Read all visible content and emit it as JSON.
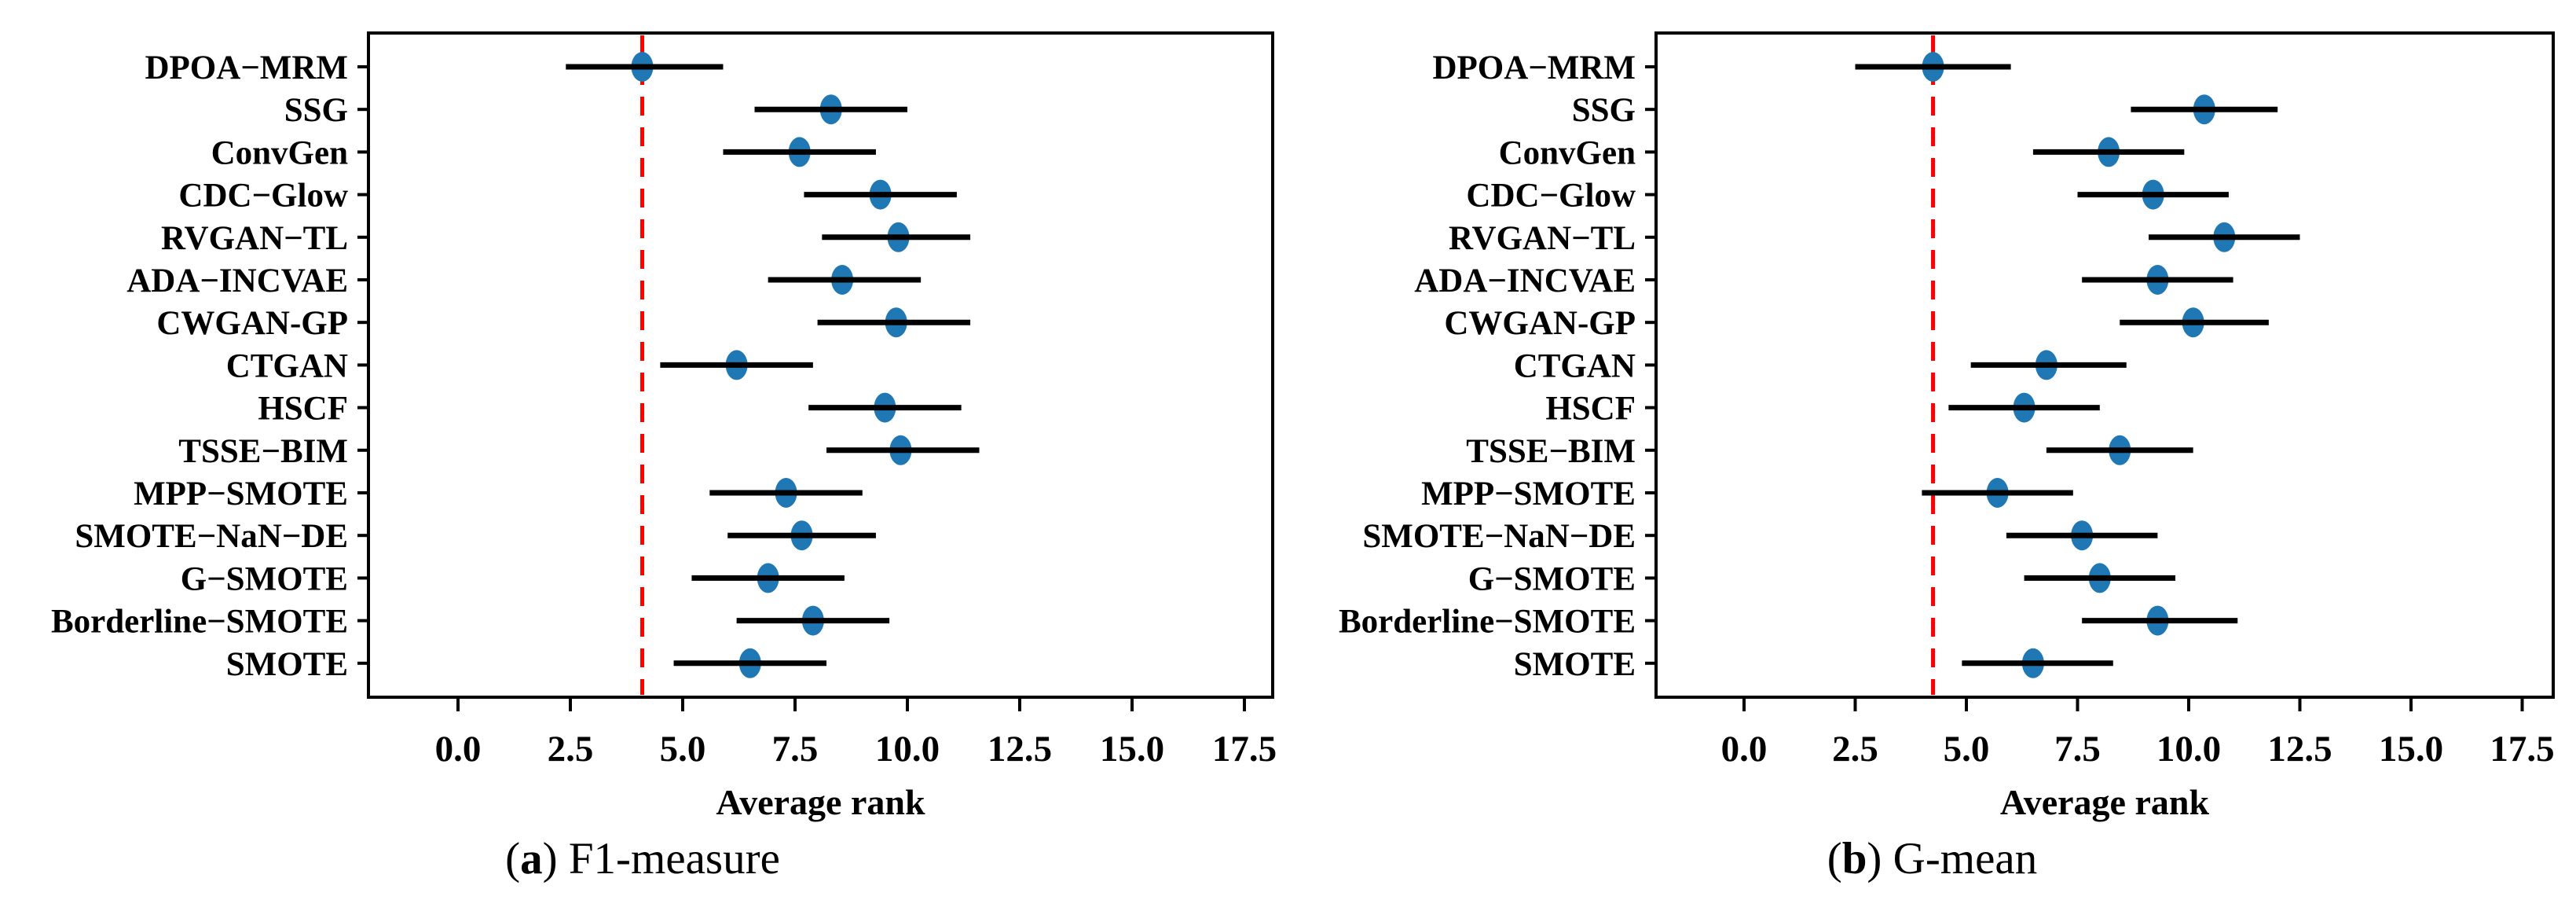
{
  "figure": {
    "captions": [
      {
        "open": "(",
        "letter": "a",
        "close": ") ",
        "text": "F1-measure"
      },
      {
        "open": "(",
        "letter": "b",
        "close": ") ",
        "text": "G-mean"
      }
    ]
  },
  "chart_data": [
    {
      "type": "scatter",
      "subtype": "horizontal-dot-with-errorbars",
      "title": "(a) F1-measure",
      "xlabel": "Average rank",
      "xlim": [
        -2.0,
        18.2
      ],
      "xticks": [
        0.0,
        2.5,
        5.0,
        7.5,
        10.0,
        12.5,
        15.0,
        17.5
      ],
      "xtick_labels": [
        "0.0",
        "2.5",
        "5.0",
        "7.5",
        "10.0",
        "12.5",
        "15.0",
        "17.5"
      ],
      "grid": false,
      "legend": null,
      "marker_color": "#1f77b4",
      "errorbar_color": "#000000",
      "reference_line": {
        "value": 4.1,
        "style": "dashed",
        "color": "#ff0000"
      },
      "categories": [
        "DPOA−MRM",
        "SSG",
        "ConvGen",
        "CDC−Glow",
        "RVGAN−TL",
        "ADA−INCVAE",
        "CWGAN-GP",
        "CTGAN",
        "HSCF",
        "TSSE−BIM",
        "MPP−SMOTE",
        "SMOTE−NaN−DE",
        "G−SMOTE",
        "Borderline−SMOTE",
        "SMOTE"
      ],
      "series": [
        {
          "name": "average-rank",
          "points": [
            {
              "mean": 4.1,
              "lo": 2.4,
              "hi": 5.9
            },
            {
              "mean": 8.3,
              "lo": 6.6,
              "hi": 10.0
            },
            {
              "mean": 7.6,
              "lo": 5.9,
              "hi": 9.3
            },
            {
              "mean": 9.4,
              "lo": 7.7,
              "hi": 11.1
            },
            {
              "mean": 9.8,
              "lo": 8.1,
              "hi": 11.4
            },
            {
              "mean": 8.55,
              "lo": 6.9,
              "hi": 10.3
            },
            {
              "mean": 9.75,
              "lo": 8.0,
              "hi": 11.4
            },
            {
              "mean": 6.2,
              "lo": 4.5,
              "hi": 7.9
            },
            {
              "mean": 9.5,
              "lo": 7.8,
              "hi": 11.2
            },
            {
              "mean": 9.85,
              "lo": 8.2,
              "hi": 11.6
            },
            {
              "mean": 7.3,
              "lo": 5.6,
              "hi": 9.0
            },
            {
              "mean": 7.65,
              "lo": 6.0,
              "hi": 9.3
            },
            {
              "mean": 6.9,
              "lo": 5.2,
              "hi": 8.6
            },
            {
              "mean": 7.9,
              "lo": 6.2,
              "hi": 9.6
            },
            {
              "mean": 6.5,
              "lo": 4.8,
              "hi": 8.2
            }
          ]
        }
      ]
    },
    {
      "type": "scatter",
      "subtype": "horizontal-dot-with-errorbars",
      "title": "(b) G-mean",
      "xlabel": "Average rank",
      "xlim": [
        -2.0,
        18.2
      ],
      "xticks": [
        0.0,
        2.5,
        5.0,
        7.5,
        10.0,
        12.5,
        15.0,
        17.5
      ],
      "xtick_labels": [
        "0.0",
        "2.5",
        "5.0",
        "7.5",
        "10.0",
        "12.5",
        "15.0",
        "17.5"
      ],
      "grid": false,
      "legend": null,
      "marker_color": "#1f77b4",
      "errorbar_color": "#000000",
      "reference_line": {
        "value": 4.25,
        "style": "dashed",
        "color": "#ff0000"
      },
      "categories": [
        "DPOA−MRM",
        "SSG",
        "ConvGen",
        "CDC−Glow",
        "RVGAN−TL",
        "ADA−INCVAE",
        "CWGAN-GP",
        "CTGAN",
        "HSCF",
        "TSSE−BIM",
        "MPP−SMOTE",
        "SMOTE−NaN−DE",
        "G−SMOTE",
        "Borderline−SMOTE",
        "SMOTE"
      ],
      "series": [
        {
          "name": "average-rank",
          "points": [
            {
              "mean": 4.25,
              "lo": 2.5,
              "hi": 6.0
            },
            {
              "mean": 10.35,
              "lo": 8.7,
              "hi": 12.0
            },
            {
              "mean": 8.2,
              "lo": 6.5,
              "hi": 9.9
            },
            {
              "mean": 9.2,
              "lo": 7.5,
              "hi": 10.9
            },
            {
              "mean": 10.8,
              "lo": 9.1,
              "hi": 12.5
            },
            {
              "mean": 9.3,
              "lo": 7.6,
              "hi": 11.0
            },
            {
              "mean": 10.1,
              "lo": 8.45,
              "hi": 11.8
            },
            {
              "mean": 6.8,
              "lo": 5.1,
              "hi": 8.6
            },
            {
              "mean": 6.3,
              "lo": 4.6,
              "hi": 8.0
            },
            {
              "mean": 8.45,
              "lo": 6.8,
              "hi": 10.1
            },
            {
              "mean": 5.7,
              "lo": 4.0,
              "hi": 7.4
            },
            {
              "mean": 7.6,
              "lo": 5.9,
              "hi": 9.3
            },
            {
              "mean": 8.0,
              "lo": 6.3,
              "hi": 9.7
            },
            {
              "mean": 9.3,
              "lo": 7.6,
              "hi": 11.1
            },
            {
              "mean": 6.5,
              "lo": 4.9,
              "hi": 8.3
            }
          ]
        }
      ]
    }
  ]
}
